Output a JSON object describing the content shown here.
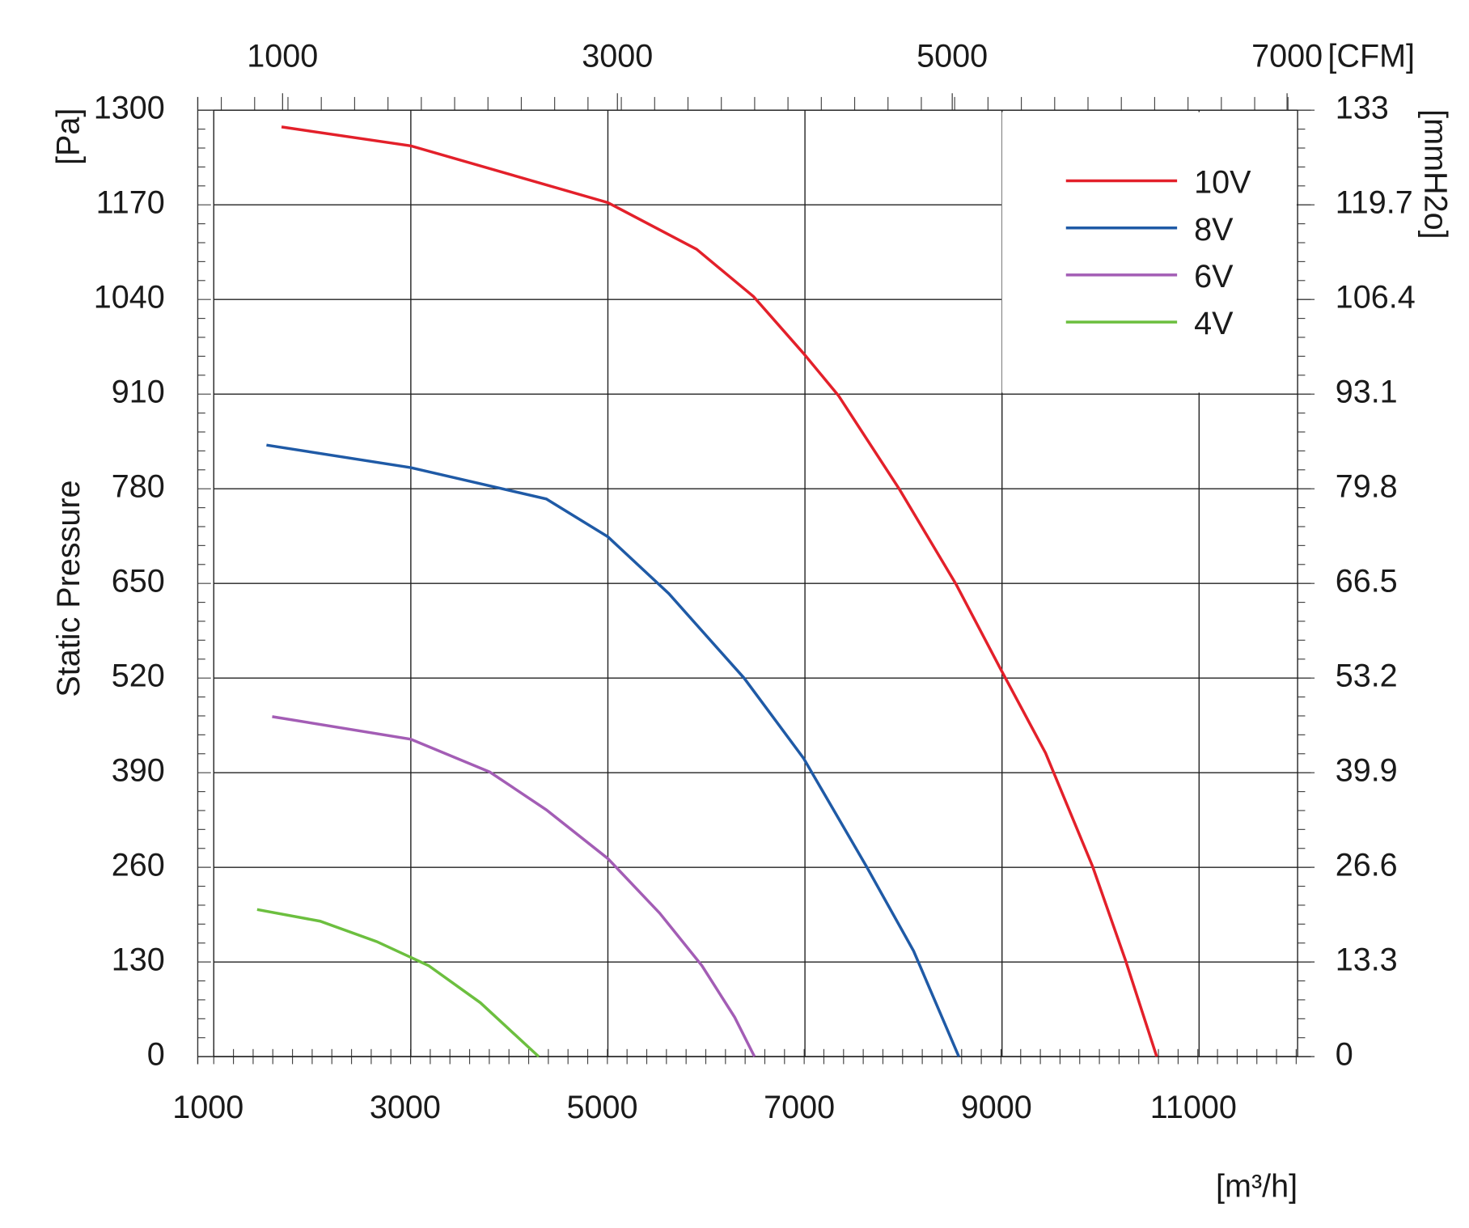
{
  "chart_data": {
    "type": "line",
    "y_label": "Static Pressure",
    "y_unit": "[Pa]",
    "y2_unit": "[mmH2o]",
    "x_unit": "[m³/h]",
    "x2_unit": "[CFM]",
    "xlim": [
      1000,
      12000
    ],
    "xticks": [
      1000,
      3000,
      5000,
      7000,
      9000,
      11000
    ],
    "x2lim": [
      589,
      7063
    ],
    "x2ticks": [
      1000,
      3000,
      5000,
      7000
    ],
    "ylim": [
      0,
      1300
    ],
    "yticks": [
      0,
      130,
      260,
      390,
      520,
      650,
      780,
      910,
      1040,
      1170,
      1300
    ],
    "y2lim": [
      0,
      133
    ],
    "y2ticks": [
      0,
      13.3,
      26.6,
      39.9,
      53.2,
      66.5,
      79.8,
      93.1,
      106.4,
      119.7,
      133
    ],
    "grid": true,
    "legend": "upper right",
    "series": [
      {
        "name": "10V",
        "color": "#e3202a",
        "x": [
          1688,
          3000,
          5000,
          5900,
          6478,
          6985,
          7340,
          7960,
          8533,
          8983,
          9442,
          9920,
          10254,
          10570
        ],
        "values": [
          1277,
          1251,
          1173,
          1109,
          1044,
          966,
          908,
          779,
          649,
          533,
          417,
          261,
          132,
          0
        ]
      },
      {
        "name": "8V",
        "color": "#1f5aa6",
        "x": [
          1535,
          3000,
          3897,
          4375,
          5000,
          5618,
          6382,
          6985,
          7625,
          8103,
          8562
        ],
        "values": [
          840,
          809,
          781,
          766,
          714,
          636,
          520,
          410,
          261,
          145,
          0
        ]
      },
      {
        "name": "6V",
        "color": "#a35db5",
        "x": [
          1593,
          3000,
          3801,
          4375,
          5000,
          5526,
          5954,
          6287,
          6488
        ],
        "values": [
          467,
          436,
          391,
          339,
          272,
          197,
          125,
          54,
          0
        ]
      },
      {
        "name": "4V",
        "color": "#6cbf3f",
        "x": [
          1440,
          2080,
          2654,
          3180,
          3706,
          4298
        ],
        "values": [
          202,
          186,
          158,
          125,
          74,
          0
        ]
      }
    ]
  }
}
